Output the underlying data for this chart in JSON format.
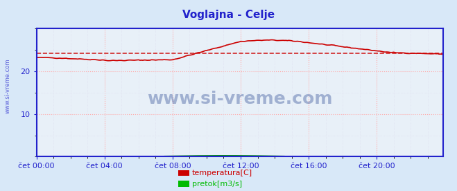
{
  "title": "Voglajna - Celje",
  "bg_color": "#d8e8f8",
  "plot_bg_color": "#e8f0f8",
  "grid_color_major": "#ffaaaa",
  "grid_color_minor": "#ddddee",
  "axis_color": "#2222cc",
  "title_color": "#2222cc",
  "watermark_text": "www.si-vreme.com",
  "watermark_color": "#1a3a8a",
  "ylabel_left": "",
  "xlabel_ticks": [
    "čet 00:00",
    "čet 04:00",
    "čet 08:00",
    "čet 12:00",
    "čet 16:00",
    "čet 20:00"
  ],
  "xlabel_tick_positions": [
    0,
    48,
    96,
    144,
    192,
    240
  ],
  "yticks": [
    10,
    20
  ],
  "ylim": [
    0,
    30
  ],
  "xlim": [
    0,
    287
  ],
  "legend_labels": [
    "temperatura[C]",
    "pretok[m3/s]"
  ],
  "legend_colors": [
    "#cc0000",
    "#00bb00"
  ],
  "temp_color": "#cc0000",
  "pretok_color": "#009900",
  "avg_line_color": "#cc0000",
  "avg_line_value": 24.2
}
